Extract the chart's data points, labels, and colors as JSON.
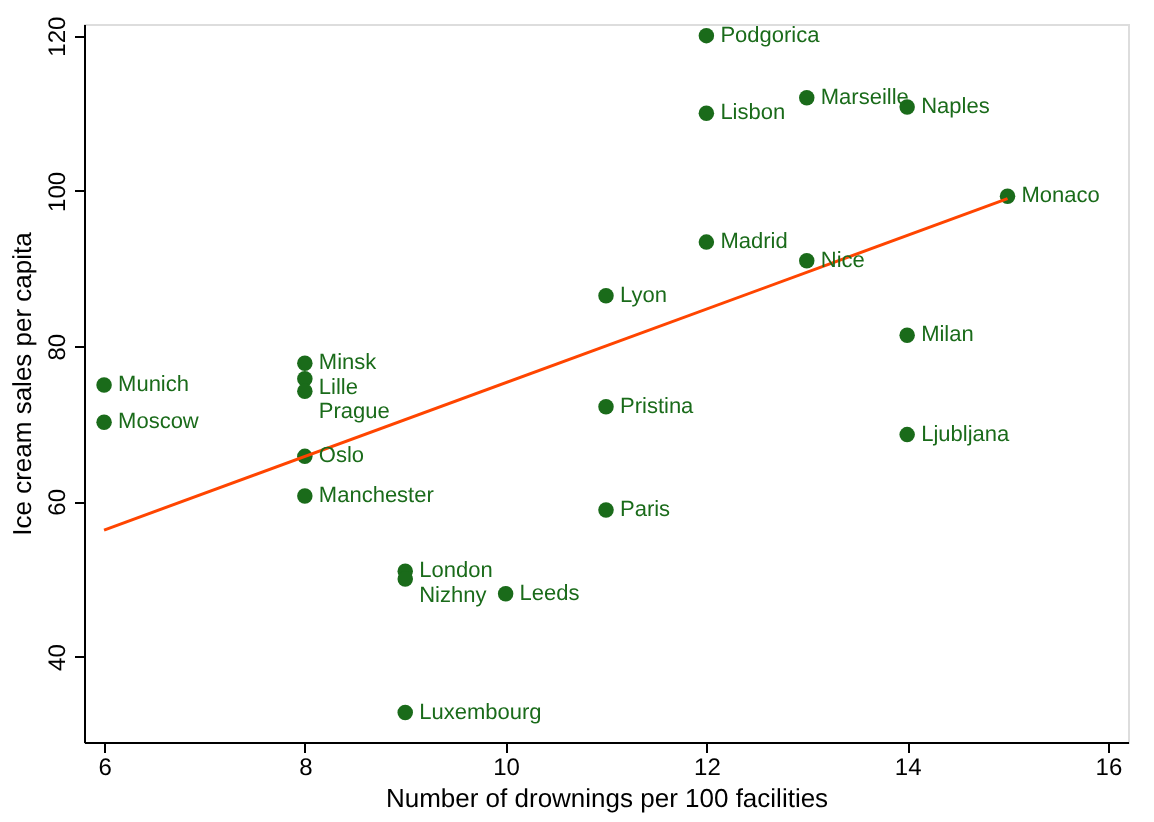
{
  "chart_data": {
    "type": "scatter",
    "xlabel": "Number of drownings per 100 facilities",
    "ylabel": "Ice cream sales per capita",
    "xlim": [
      5.8,
      16.2
    ],
    "xticks": [
      6,
      8,
      10,
      12,
      14,
      16
    ],
    "ylim": [
      29,
      121.5
    ],
    "yticks": [
      40,
      60,
      80,
      100,
      120
    ],
    "series": [
      {
        "marker": "circle",
        "color": "#1a6b1a",
        "x": [
          6,
          6,
          8,
          8,
          8,
          8,
          8,
          9,
          9,
          9,
          10,
          11,
          11,
          11,
          12,
          12,
          12,
          13,
          13,
          14,
          14,
          14,
          15
        ],
        "values": [
          75,
          70.2,
          77.8,
          75.8,
          74.2,
          65.8,
          60.7,
          51,
          50,
          32.8,
          48.1,
          86.5,
          72.2,
          58.9,
          120,
          110,
          93.4,
          112,
          91,
          110.8,
          81.4,
          68.6,
          99.3
        ]
      },
      {
        "type": "line",
        "marker": "none",
        "color": "#ff4500",
        "x": [
          6,
          15
        ],
        "values": [
          56.3,
          99
        ]
      }
    ],
    "annotations": [
      {
        "text": "Munich",
        "x": 6,
        "y": 75
      },
      {
        "text": "Moscow",
        "x": 6,
        "y": 70.2
      },
      {
        "text": "Minsk",
        "x": 8,
        "y": 77.8
      },
      {
        "text": "Lille",
        "x": 8,
        "y": 75.8
      },
      {
        "text": "Prague",
        "x": 8,
        "y": 74.2
      },
      {
        "text": "Oslo",
        "x": 8,
        "y": 65.8
      },
      {
        "text": "Manchester",
        "x": 8,
        "y": 60.7
      },
      {
        "text": "London",
        "x": 9,
        "y": 51
      },
      {
        "text": "Nizhny",
        "x": 9,
        "y": 50
      },
      {
        "text": "Luxembourg",
        "x": 9,
        "y": 32.8
      },
      {
        "text": "Leeds",
        "x": 10,
        "y": 48.1
      },
      {
        "text": "Lyon",
        "x": 11,
        "y": 86.5
      },
      {
        "text": "Pristina",
        "x": 11,
        "y": 72.2
      },
      {
        "text": "Paris",
        "x": 11,
        "y": 58.9
      },
      {
        "text": "Podgorica",
        "x": 12,
        "y": 120
      },
      {
        "text": "Lisbon",
        "x": 12,
        "y": 110
      },
      {
        "text": "Madrid",
        "x": 12,
        "y": 93.4
      },
      {
        "text": "Marseille",
        "x": 13,
        "y": 112
      },
      {
        "text": "Nice",
        "x": 13,
        "y": 91
      },
      {
        "text": "Naples",
        "x": 14,
        "y": 110.8
      },
      {
        "text": "Milan",
        "x": 14,
        "y": 81.4
      },
      {
        "text": "Ljubljana",
        "x": 14,
        "y": 68.6
      },
      {
        "text": "Monaco",
        "x": 15,
        "y": 99.3
      }
    ]
  }
}
